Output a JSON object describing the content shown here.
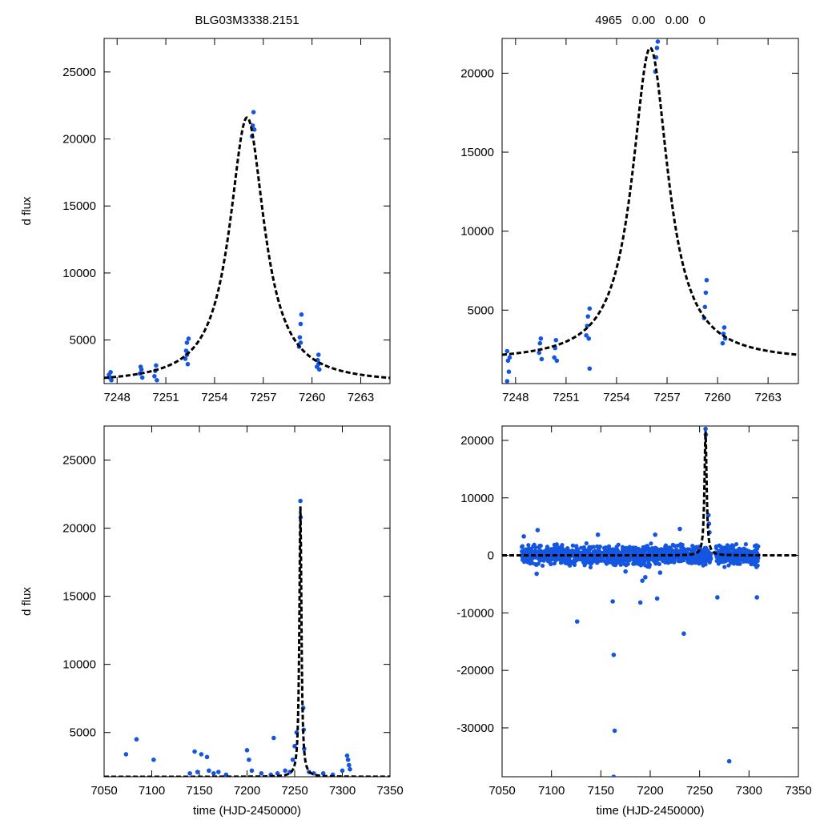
{
  "chart_data": [
    {
      "type": "scatter",
      "panel": "top-left",
      "title": "BLG03M3338.2151",
      "xlabel": "",
      "ylabel": "d flux",
      "xlim": [
        7247.2,
        7264.8
      ],
      "ylim": [
        1750,
        27500
      ],
      "xticks": [
        "7248",
        "7251",
        "7254",
        "7257",
        "7260",
        "7263"
      ],
      "yticks": [
        "5000",
        "10000",
        "15000",
        "20000",
        "25000"
      ],
      "model": {
        "name": "microlensing fit",
        "t0": 7256.0,
        "peak": 21600,
        "base": 1750,
        "width": 1.3
      },
      "series": [
        {
          "name": "data",
          "points": [
            [
              7247.5,
              2400
            ],
            [
              7247.55,
              2200
            ],
            [
              7247.6,
              2600
            ],
            [
              7247.65,
              2000
            ],
            [
              7249.4,
              2500
            ],
            [
              7249.45,
              3000
            ],
            [
              7249.5,
              2800
            ],
            [
              7249.55,
              2200
            ],
            [
              7250.3,
              2300
            ],
            [
              7250.35,
              2700
            ],
            [
              7250.4,
              3100
            ],
            [
              7250.45,
              2000
            ],
            [
              7252.2,
              3600
            ],
            [
              7252.25,
              4200
            ],
            [
              7252.3,
              4800
            ],
            [
              7252.35,
              3200
            ],
            [
              7252.4,
              5100
            ],
            [
              7252.3,
              3900
            ],
            [
              7256.3,
              20200
            ],
            [
              7256.35,
              21000
            ],
            [
              7256.4,
              22000
            ],
            [
              7256.45,
              20700
            ],
            [
              7259.2,
              4500
            ],
            [
              7259.25,
              5200
            ],
            [
              7259.3,
              6200
            ],
            [
              7259.35,
              6900
            ],
            [
              7259.3,
              4800
            ],
            [
              7260.3,
              3000
            ],
            [
              7260.35,
              3500
            ],
            [
              7260.4,
              3900
            ],
            [
              7260.45,
              2800
            ],
            [
              7260.4,
              3200
            ]
          ]
        }
      ]
    },
    {
      "type": "scatter",
      "panel": "top-right",
      "title": "4965   0.00   0.00   0",
      "xlabel": "",
      "ylabel": "",
      "xlim": [
        7247.2,
        7264.8
      ],
      "ylim": [
        350,
        22200
      ],
      "xticks": [
        "7248",
        "7251",
        "7254",
        "7257",
        "7260",
        "7263"
      ],
      "yticks": [
        "5000",
        "10000",
        "15000",
        "20000"
      ],
      "model": {
        "name": "microlensing fit",
        "t0": 7256.0,
        "peak": 21600,
        "base": 1750,
        "width": 1.3
      },
      "series": [
        {
          "name": "data",
          "points": [
            [
              7247.5,
              2400
            ],
            [
              7247.55,
              1800
            ],
            [
              7247.6,
              1100
            ],
            [
              7247.5,
              500
            ],
            [
              7247.65,
              2000
            ],
            [
              7249.4,
              2300
            ],
            [
              7249.45,
              2900
            ],
            [
              7249.5,
              3200
            ],
            [
              7249.55,
              1900
            ],
            [
              7250.3,
              2000
            ],
            [
              7250.35,
              2600
            ],
            [
              7250.4,
              3100
            ],
            [
              7250.45,
              1800
            ],
            [
              7252.2,
              3400
            ],
            [
              7252.25,
              4000
            ],
            [
              7252.3,
              4600
            ],
            [
              7252.35,
              3200
            ],
            [
              7252.4,
              5100
            ],
            [
              7252.4,
              1300
            ],
            [
              7256.3,
              20100
            ],
            [
              7256.35,
              21000
            ],
            [
              7256.4,
              21600
            ],
            [
              7256.45,
              22000
            ],
            [
              7259.2,
              4500
            ],
            [
              7259.25,
              5200
            ],
            [
              7259.3,
              6100
            ],
            [
              7259.35,
              6900
            ],
            [
              7260.3,
              2900
            ],
            [
              7260.35,
              3500
            ],
            [
              7260.4,
              3900
            ],
            [
              7260.45,
              3200
            ]
          ]
        }
      ]
    },
    {
      "type": "scatter",
      "panel": "bottom-left",
      "title": "",
      "xlabel": "time (HJD-2450000)",
      "ylabel": "d flux",
      "xlim": [
        7050,
        7350
      ],
      "ylim": [
        1750,
        27500
      ],
      "xticks": [
        "7050",
        "7100",
        "7150",
        "7200",
        "7250",
        "7300",
        "7350"
      ],
      "yticks": [
        "5000",
        "10000",
        "15000",
        "20000",
        "25000"
      ],
      "model": {
        "name": "microlensing fit",
        "t0": 7256.0,
        "peak": 21600,
        "base": 1750,
        "width": 1.3
      },
      "series": [
        {
          "name": "data",
          "points": [
            [
              7073,
              3400
            ],
            [
              7084,
              4500
            ],
            [
              7102,
              3000
            ],
            [
              7145,
              3600
            ],
            [
              7152,
              3400
            ],
            [
              7158,
              3200
            ],
            [
              7140,
              2000
            ],
            [
              7148,
              2100
            ],
            [
              7160,
              2200
            ],
            [
              7165,
              2000
            ],
            [
              7170,
              2100
            ],
            [
              7178,
              1900
            ],
            [
              7200,
              3700
            ],
            [
              7202,
              3000
            ],
            [
              7205,
              2200
            ],
            [
              7215,
              2000
            ],
            [
              7225,
              1900
            ],
            [
              7228,
              4600
            ],
            [
              7232,
              2000
            ],
            [
              7240,
              2200
            ],
            [
              7245,
              2100
            ],
            [
              7248,
              3000
            ],
            [
              7250,
              4000
            ],
            [
              7252,
              5000
            ],
            [
              7256,
              22000
            ],
            [
              7256.3,
              20800
            ],
            [
              7259,
              6800
            ],
            [
              7259.5,
              5200
            ],
            [
              7260,
              3800
            ],
            [
              7265,
              2100
            ],
            [
              7270,
              2000
            ],
            [
              7280,
              2000
            ],
            [
              7290,
              1900
            ],
            [
              7300,
              2200
            ],
            [
              7305,
              3300
            ],
            [
              7306,
              3000
            ],
            [
              7307,
              2600
            ],
            [
              7308,
              2300
            ]
          ]
        }
      ]
    },
    {
      "type": "scatter",
      "panel": "bottom-right",
      "title": "",
      "xlabel": "time (HJD-2450000)",
      "ylabel": "",
      "xlim": [
        7050,
        7350
      ],
      "ylim": [
        -38500,
        22500
      ],
      "xticks": [
        "7050",
        "7100",
        "7150",
        "7200",
        "7250",
        "7300",
        "7350"
      ],
      "yticks": [
        "-30000",
        "-20000",
        "-10000",
        "0",
        "10000",
        "20000"
      ],
      "model": {
        "name": "microlensing fit",
        "t0": 7256.0,
        "peak": 21600,
        "base": 0,
        "width": 1.3
      },
      "outliers": [
        [
          7126,
          -11500
        ],
        [
          7162,
          -8000
        ],
        [
          7163,
          -17300
        ],
        [
          7164,
          -30500
        ],
        [
          7163,
          -38500
        ],
        [
          7190,
          -8200
        ],
        [
          7207,
          -7500
        ],
        [
          7234,
          -13600
        ],
        [
          7268,
          -7300
        ],
        [
          7280,
          -35800
        ],
        [
          7308,
          -7300
        ],
        [
          7256,
          22000
        ],
        [
          7256.3,
          21000
        ],
        [
          7259,
          7000
        ],
        [
          7259.5,
          5500
        ],
        [
          7260,
          4000
        ],
        [
          7072,
          3300
        ],
        [
          7086,
          4400
        ],
        [
          7147,
          3600
        ],
        [
          7205,
          3600
        ],
        [
          7230,
          4600
        ],
        [
          7192,
          -4400
        ],
        [
          7195,
          -3800
        ],
        [
          7210,
          -3000
        ],
        [
          7085,
          -3200
        ],
        [
          7175,
          -2800
        ]
      ],
      "band": {
        "x_start": 7070,
        "x_end": 7310,
        "spread": 1600,
        "gap_start": 7262,
        "gap_end": 7266
      }
    }
  ]
}
